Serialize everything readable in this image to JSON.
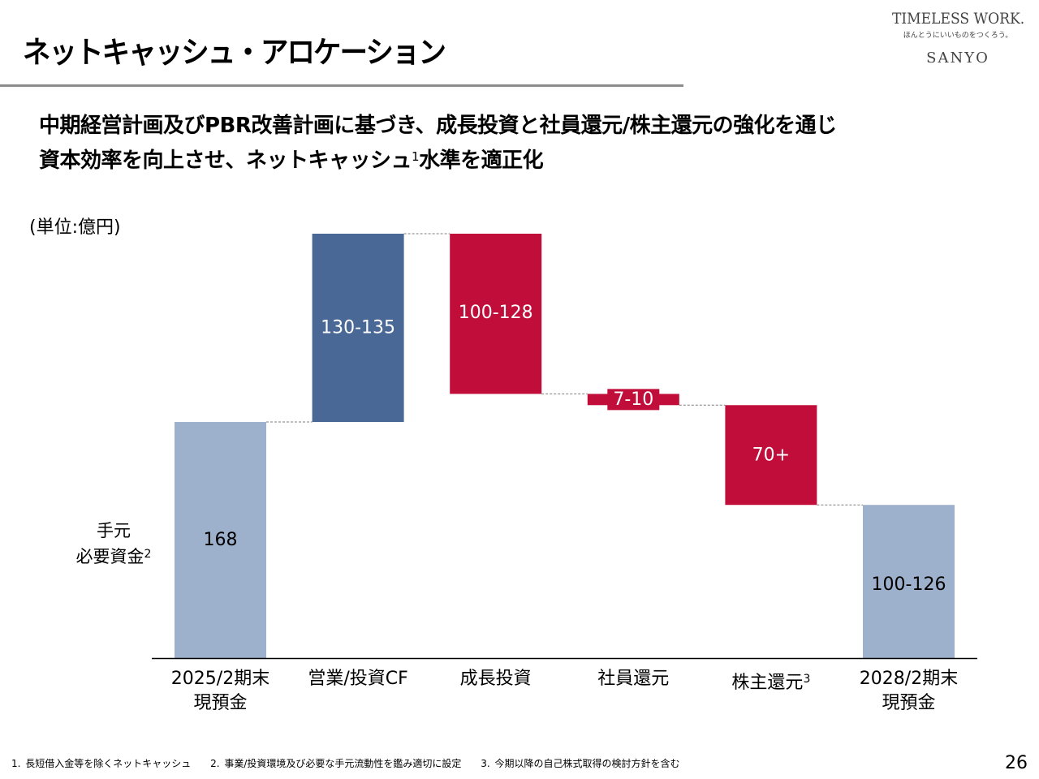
{
  "header": {
    "title": "ネットキャッシュ・アロケーション",
    "logo": {
      "line1": "TIMELESS WORK.",
      "line2": "ほんとうにいいものをつくろう。",
      "line3": "SANYO"
    }
  },
  "lead": {
    "line1": "中期経営計画及びPBR改善計画に基づき、成長投資と社員還元/株主還元の強化を通じ",
    "line2_pre": "資本効率を向上させ、ネットキャッシュ",
    "line2_sup": "1",
    "line2_post": "水準を適正化"
  },
  "side_label": {
    "line1": "手元",
    "line2": "必要資金",
    "sup": "2"
  },
  "chart_data": {
    "type": "waterfall",
    "unit_label": "(単位:億円)",
    "categories": [
      {
        "label": "2025/2期末",
        "label2": "現預金",
        "sup": ""
      },
      {
        "label": "営業/投資CF",
        "label2": "",
        "sup": ""
      },
      {
        "label": "成長投資",
        "label2": "",
        "sup": ""
      },
      {
        "label": "社員還元",
        "label2": "",
        "sup": ""
      },
      {
        "label": "株主還元",
        "label2": "",
        "sup": "3"
      },
      {
        "label": "2028/2期末",
        "label2": "現預金",
        "sup": ""
      }
    ],
    "bars": [
      {
        "kind": "total",
        "start": 0,
        "end": 168,
        "data_label": "168",
        "color": "#9DB0CC",
        "label_color": "#000000"
      },
      {
        "kind": "increase",
        "start": 168,
        "end": 302,
        "data_label": "130-135",
        "color": "#4A6896",
        "label_color": "#ffffff"
      },
      {
        "kind": "decrease",
        "start": 302,
        "end": 188,
        "data_label": "100-128",
        "color": "#C00D3A",
        "label_color": "#ffffff"
      },
      {
        "kind": "decrease",
        "start": 188,
        "end": 180,
        "data_label": "7-10",
        "color": "#C00D3A",
        "label_color": "#ffffff"
      },
      {
        "kind": "decrease",
        "start": 180,
        "end": 109,
        "data_label": "70+",
        "color": "#C00D3A",
        "label_color": "#ffffff"
      },
      {
        "kind": "total",
        "start": 0,
        "end": 109,
        "data_label": "100-126",
        "color": "#9DB0CC",
        "label_color": "#000000"
      }
    ],
    "ylim": [
      0,
      302
    ],
    "grid": false,
    "connectors": "dashed"
  },
  "footnotes": [
    "1. 長短借入金等を除くネットキャッシュ",
    "2. 事業/投資環境及び必要な手元流動性を鑑み適切に設定",
    "3. 今期以降の自己株式取得の検討方針を含む"
  ],
  "page_number": "26"
}
